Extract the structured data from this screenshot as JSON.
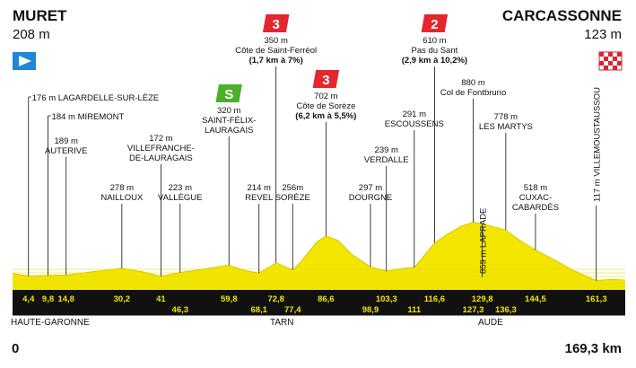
{
  "start": {
    "town": "MURET",
    "altitude": "208 m"
  },
  "finish": {
    "town": "CARCASSONNE",
    "altitude": "123 m"
  },
  "distance_start": "0",
  "distance_total": "169,3 km",
  "regions": [
    "HAUTE-GARONNE",
    "TARN",
    "AUDE"
  ],
  "colors": {
    "profile": "#f2e600",
    "distance_bar": "#111111",
    "climb_badge": "#e3262f",
    "sprint_badge": "#4caf2a",
    "start_flag": "#1e88d4"
  },
  "icons": {
    "start": "blue-start-flag-icon",
    "finish": "checkered-finish-flag-icon",
    "climb": "climb-category-icon",
    "sprint": "intermediate-sprint-icon"
  },
  "km_marks_top": [
    "4,4",
    "9,8",
    "14,8",
    "30,2",
    "41",
    "59,8",
    "72,8",
    "86,6",
    "103,3",
    "116,6",
    "129,8",
    "144,5",
    "161,3"
  ],
  "km_marks_bottom": [
    "46,3",
    "68,1",
    "77,4",
    "98,9",
    "111",
    "127,3",
    "136,3"
  ],
  "waypoints": [
    {
      "km": 4.4,
      "label": [
        "176 m LAGARDELLE-SUR-LÈZE"
      ]
    },
    {
      "km": 9.8,
      "label": [
        "184 m MIREMONT"
      ]
    },
    {
      "km": 14.8,
      "label": [
        "189 m",
        "AUTERIVE"
      ]
    },
    {
      "km": 30.2,
      "label": [
        "278 m",
        "NAILLOUX"
      ]
    },
    {
      "km": 41,
      "label": [
        "172 m",
        "VILLEFRANCHE-",
        "DE-LAURAGAIS"
      ]
    },
    {
      "km": 46.3,
      "label": [
        "223 m",
        "VALLÈGUE"
      ]
    },
    {
      "km": 59.8,
      "label": [
        "320 m",
        "SAINT-FÉLIX-",
        "LAURAGAIS"
      ],
      "badge": "sprint",
      "badge_text": "S"
    },
    {
      "km": 68.1,
      "label": [
        "214 m",
        "REVEL"
      ]
    },
    {
      "km": 72.8,
      "label": [
        "350 m",
        "Côte de Saint-Ferréol",
        "(1,7 km à 7%)"
      ],
      "badge": "climb",
      "badge_text": "3"
    },
    {
      "km": 77.4,
      "label": [
        "256m",
        "SORÈZE"
      ]
    },
    {
      "km": 86.6,
      "label": [
        "702 m",
        "Côte de Sorèze",
        "(6,2 km à 5,5%)"
      ],
      "badge": "climb",
      "badge_text": "3"
    },
    {
      "km": 98.9,
      "label": [
        "297 m",
        "DOURGNE"
      ]
    },
    {
      "km": 103.3,
      "label": [
        "239 m",
        "VERDALLE"
      ]
    },
    {
      "km": 111,
      "label": [
        "291 m",
        "ESCOUSSENS"
      ]
    },
    {
      "km": 116.6,
      "label": [
        "610 m",
        "Pas du Sant",
        "(2,9 km à 10,2%)"
      ],
      "badge": "climb",
      "badge_text": "2"
    },
    {
      "km": 127.3,
      "label": [
        "880 m",
        "Col de Fontbruno"
      ]
    },
    {
      "km": 129.8,
      "label": [
        "859 m LAPRADE"
      ],
      "vertical": true
    },
    {
      "km": 136.3,
      "label": [
        "778 m",
        "LES MARTYS"
      ]
    },
    {
      "km": 144.5,
      "label": [
        "518 m",
        "CUXAC-",
        "CABARDÈS"
      ]
    },
    {
      "km": 161.3,
      "label": [
        "117 m VILLEMOUSTAUSSOU"
      ],
      "vertical": true
    }
  ],
  "profile": [
    [
      0,
      208
    ],
    [
      4.4,
      176
    ],
    [
      9.8,
      184
    ],
    [
      14.8,
      189
    ],
    [
      22,
      230
    ],
    [
      30.2,
      278
    ],
    [
      36,
      230
    ],
    [
      41,
      172
    ],
    [
      46.3,
      223
    ],
    [
      52,
      260
    ],
    [
      59.8,
      320
    ],
    [
      64,
      250
    ],
    [
      68.1,
      214
    ],
    [
      72.8,
      350
    ],
    [
      77.4,
      256
    ],
    [
      80,
      380
    ],
    [
      84,
      620
    ],
    [
      86.6,
      702
    ],
    [
      90,
      640
    ],
    [
      94,
      450
    ],
    [
      98.9,
      297
    ],
    [
      103.3,
      239
    ],
    [
      107,
      270
    ],
    [
      111,
      291
    ],
    [
      113,
      400
    ],
    [
      116.6,
      610
    ],
    [
      120,
      720
    ],
    [
      124,
      830
    ],
    [
      127.3,
      880
    ],
    [
      129.8,
      859
    ],
    [
      133,
      820
    ],
    [
      136.3,
      778
    ],
    [
      140,
      650
    ],
    [
      144.5,
      518
    ],
    [
      150,
      380
    ],
    [
      155,
      250
    ],
    [
      161.3,
      117
    ],
    [
      165,
      130
    ],
    [
      169.3,
      123
    ]
  ]
}
